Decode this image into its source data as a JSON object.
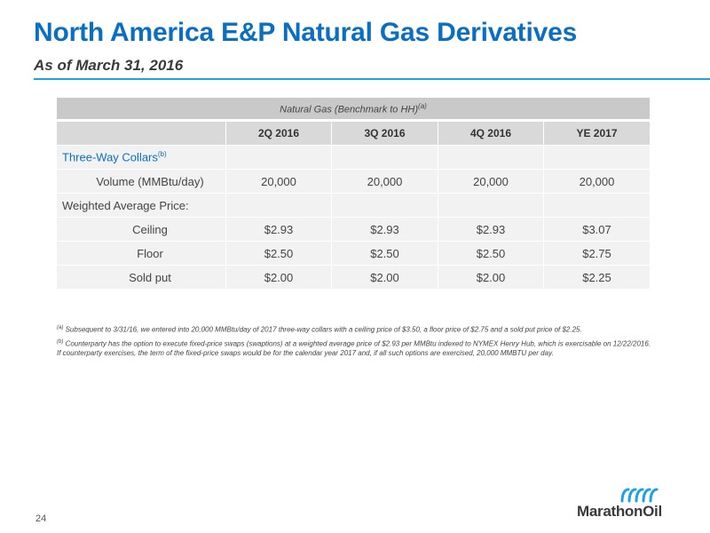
{
  "header": {
    "title": "North America E&P Natural Gas Derivatives",
    "subtitle": "As of March 31, 2016"
  },
  "table": {
    "group_header": "Natural Gas (Benchmark to HH)",
    "group_header_note": "(a)",
    "columns": [
      "2Q 2016",
      "3Q 2016",
      "4Q 2016",
      "YE 2017"
    ],
    "section_label": "Three-Way Collars",
    "section_note": "(b)",
    "rows": [
      {
        "label": "Volume (MMBtu/day)",
        "values": [
          "20,000",
          "20,000",
          "20,000",
          "20,000"
        ]
      },
      {
        "label": "Weighted Average Price:",
        "values": [
          "",
          "",
          "",
          ""
        ]
      },
      {
        "label": "Ceiling",
        "values": [
          "$2.93",
          "$2.93",
          "$2.93",
          "$3.07"
        ]
      },
      {
        "label": "Floor",
        "values": [
          "$2.50",
          "$2.50",
          "$2.50",
          "$2.75"
        ]
      },
      {
        "label": "Sold put",
        "values": [
          "$2.00",
          "$2.00",
          "$2.00",
          "$2.25"
        ]
      }
    ]
  },
  "footnotes": {
    "a_mark": "(a)",
    "a_text": "Subsequent to 3/31/16, we entered into 20,000 MMBtu/day of 2017 three-way collars with a ceiling price of $3.50, a floor price of $2.75 and a sold put price of $2.25.",
    "b_mark": "(b)",
    "b_text": "Counterparty has the option to execute fixed-price swaps (swaptions) at a weighted average price of $2.93 per MMBtu indexed to NYMEX Henry Hub, which is exercisable on 12/22/2016. If counterparty exercises, the term of the fixed-price swaps would be for the calendar year 2017 and, if all such options are exercised, 20,000 MMBTU per day."
  },
  "footer": {
    "page_number": "24",
    "logo_text": "MarathonOil",
    "logo_icon": "wave-bars-icon",
    "logo_color": "#1aa3dc"
  }
}
